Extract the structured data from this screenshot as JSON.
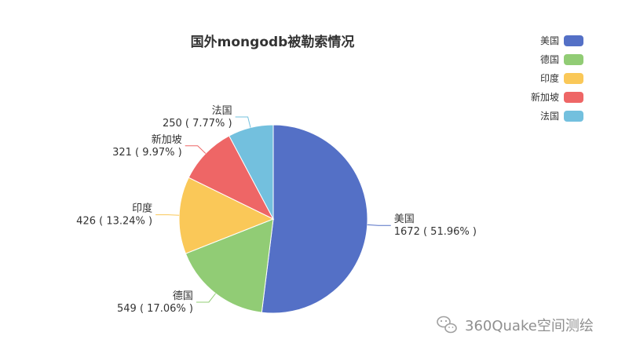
{
  "chart_data": {
    "type": "pie",
    "title": "国外mongodb被勒索情况",
    "legend_position": "top-right",
    "slices": [
      {
        "name": "美国",
        "value": 1672,
        "percent": "51.96%",
        "color": "#5470c6"
      },
      {
        "name": "德国",
        "value": 549,
        "percent": "17.06%",
        "color": "#91cc75"
      },
      {
        "name": "印度",
        "value": 426,
        "percent": "13.24%",
        "color": "#fac858"
      },
      {
        "name": "新加坡",
        "value": 321,
        "percent": "9.97%",
        "color": "#ee6666"
      },
      {
        "name": "法国",
        "value": 250,
        "percent": "7.77%",
        "color": "#73c0de"
      }
    ]
  },
  "watermark": {
    "text": "360Quake空间测绘",
    "icon": "wechat-icon"
  }
}
